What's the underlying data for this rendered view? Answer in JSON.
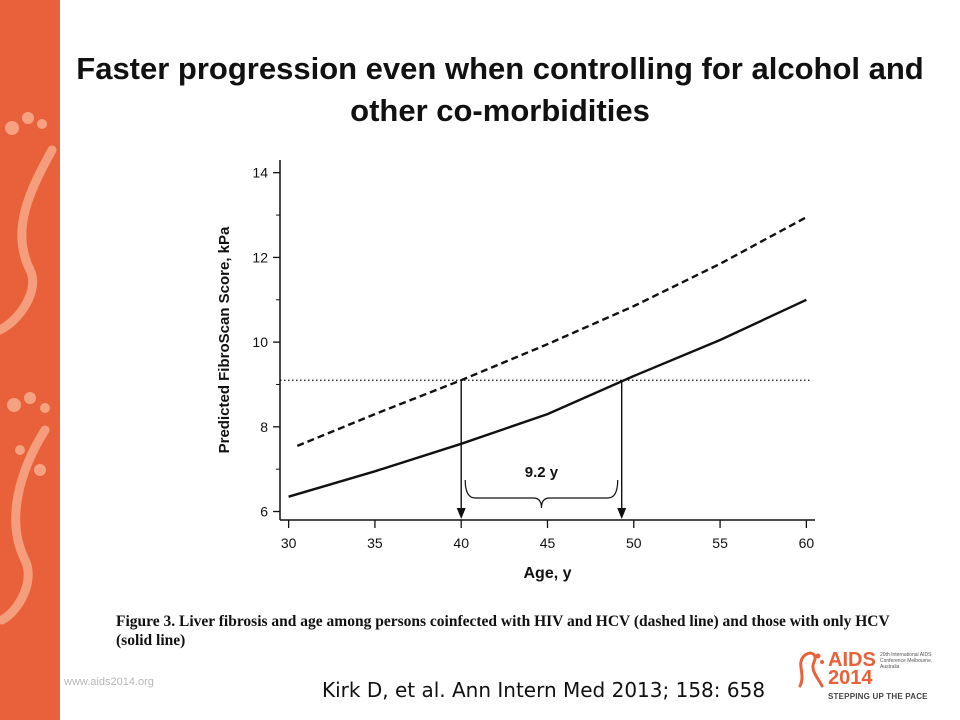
{
  "slide": {
    "title": "Faster progression even when controlling for alcohol and other co-morbidities",
    "caption": "Figure 3. Liver fibrosis and age among persons coinfected with HIV and HCV (dashed line) and those with only HCV (solid line)",
    "citation": "Kirk D, et al. Ann Intern Med 2013; 158: 658",
    "website": "www.aids2014.org",
    "logo": {
      "main": "AIDS",
      "year": "2014",
      "small": "20th International AIDS Conference Melbourne, Australia",
      "tagline": "STEPPING UP THE PACE"
    }
  },
  "chart_data": {
    "type": "line",
    "xlabel": "Age, y",
    "ylabel": "Predicted FibroScan Score, kPa",
    "xlim": [
      29.5,
      60.5
    ],
    "ylim": [
      5.8,
      14.3
    ],
    "xticks": [
      30,
      35,
      40,
      45,
      50,
      55,
      60
    ],
    "yticks": [
      6,
      8,
      10,
      12,
      14
    ],
    "series": [
      {
        "style": "dashed",
        "x": [
          30.5,
          35,
          40,
          45,
          50,
          55,
          60
        ],
        "y": [
          7.55,
          8.3,
          9.1,
          9.95,
          10.85,
          11.85,
          12.95
        ]
      },
      {
        "style": "solid",
        "x": [
          30,
          35,
          40,
          45,
          50,
          55,
          60
        ],
        "y": [
          6.35,
          6.95,
          7.6,
          8.3,
          9.2,
          10.05,
          11.0
        ]
      }
    ],
    "threshold": {
      "y": 9.1,
      "style": "dotted"
    },
    "markers": [
      40.0,
      49.3
    ],
    "annotation": {
      "text": "9.2 y"
    },
    "colors": {
      "lines": "#111111",
      "accent": "#e8613a"
    }
  }
}
